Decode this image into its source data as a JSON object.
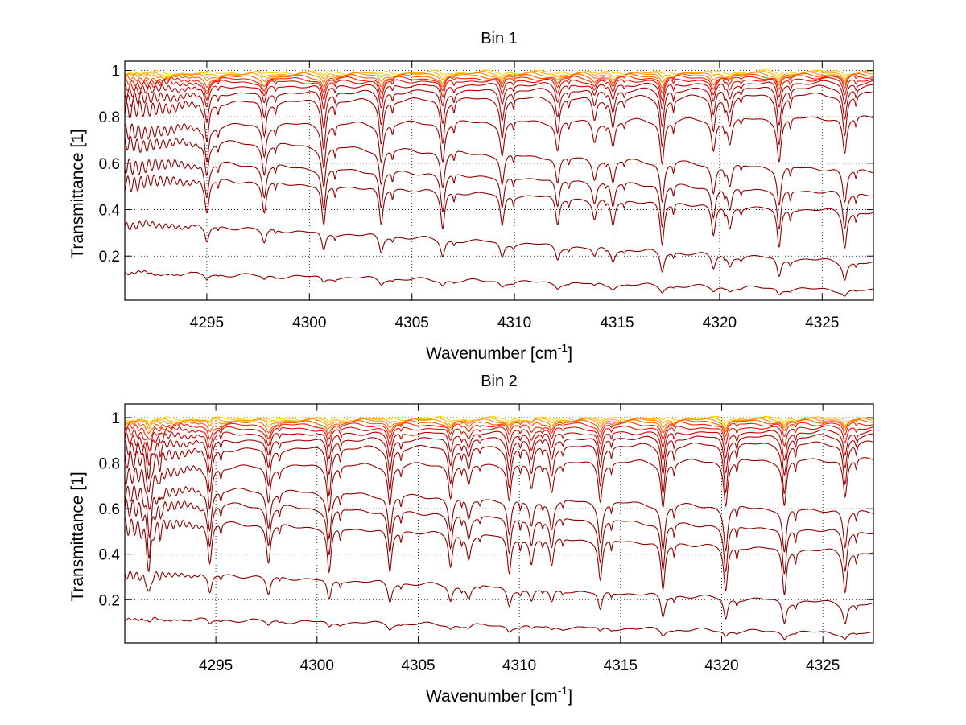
{
  "chart_data": [
    {
      "type": "line",
      "title": "Bin 1",
      "xlabel_main": "Wavenumber [cm",
      "xlabel_sup": "-1",
      "xlabel_end": "]",
      "ylabel": "Transmittance [1]",
      "xlim": [
        4291,
        4327.5
      ],
      "ylim": [
        0.01,
        1.04
      ],
      "xticks": [
        4295,
        4300,
        4305,
        4310,
        4315,
        4320,
        4325
      ],
      "xtick_labels": [
        "4295",
        "4300",
        "4305",
        "4310",
        "4315",
        "4320",
        "4325"
      ],
      "yticks": [
        0.2,
        0.4,
        0.6,
        0.8,
        1
      ],
      "ytick_labels": [
        "0.2",
        "0.4",
        "0.6",
        "0.8",
        "1"
      ],
      "grid": true,
      "line_lines": [
        4295,
        4297.8,
        4300.7,
        4303.5,
        4306.5,
        4309.4,
        4312.1,
        4313.9,
        4314.8,
        4317.2,
        4319.7,
        4320.5,
        4322.9,
        4326.1
      ],
      "line_depth_scale": [
        1.0,
        0.9,
        1.2,
        1.1,
        1.1,
        0.95,
        0.85,
        0.6,
        0.75,
        1.25,
        0.9,
        0.7,
        1.2,
        1.05
      ],
      "curves": [
        {
          "base_start": 0.99,
          "base_end": 0.995,
          "depth": 0.012,
          "color": "#ffd400"
        },
        {
          "base_start": 0.985,
          "base_end": 0.99,
          "depth": 0.018,
          "color": "#ffb000"
        },
        {
          "base_start": 0.98,
          "base_end": 0.985,
          "depth": 0.025,
          "color": "#ff8c00"
        },
        {
          "base_start": 0.97,
          "base_end": 0.98,
          "depth": 0.035,
          "color": "#ff5a00"
        },
        {
          "base_start": 0.96,
          "base_end": 0.975,
          "depth": 0.05,
          "color": "#ff2000"
        },
        {
          "base_start": 0.95,
          "base_end": 0.965,
          "depth": 0.07,
          "color": "#e01000"
        },
        {
          "base_start": 0.93,
          "base_end": 0.95,
          "depth": 0.09,
          "color": "#c40000"
        },
        {
          "base_start": 0.9,
          "base_end": 0.93,
          "depth": 0.13,
          "color": "#a80000"
        },
        {
          "base_start": 0.86,
          "base_end": 0.9,
          "depth": 0.17,
          "color": "#a00000"
        },
        {
          "base_start": 0.76,
          "base_end": 0.8,
          "depth": 0.15,
          "color": "#9a0000"
        },
        {
          "base_start": 0.71,
          "base_end": 0.57,
          "depth": 0.14,
          "color": "#900000"
        },
        {
          "base_start": 0.62,
          "base_end": 0.47,
          "depth": 0.15,
          "color": "#900000"
        },
        {
          "base_start": 0.55,
          "base_end": 0.39,
          "depth": 0.15,
          "color": "#900000"
        },
        {
          "base_start": 0.35,
          "base_end": 0.17,
          "depth": 0.07,
          "color": "#8a0000"
        },
        {
          "base_start": 0.13,
          "base_end": 0.05,
          "depth": 0.02,
          "color": "#8a0000"
        }
      ]
    },
    {
      "type": "line",
      "title": "Bin 2",
      "xlabel_main": "Wavenumber [cm",
      "xlabel_sup": "-1",
      "xlabel_end": "]",
      "ylabel": "Transmittance [1]",
      "xlim": [
        4290.5,
        4327.5
      ],
      "ylim": [
        0.01,
        1.06
      ],
      "xticks": [
        4295,
        4300,
        4305,
        4310,
        4315,
        4320,
        4325
      ],
      "xtick_labels": [
        "4295",
        "4300",
        "4305",
        "4310",
        "4315",
        "4320",
        "4325"
      ],
      "yticks": [
        0.2,
        0.4,
        0.6,
        0.8,
        1
      ],
      "ytick_labels": [
        "0.2",
        "0.4",
        "0.6",
        "0.8",
        "1"
      ],
      "grid": true,
      "line_lines": [
        4291.7,
        4294.7,
        4297.6,
        4300.6,
        4303.6,
        4306.6,
        4307.5,
        4309.5,
        4310.6,
        4311.6,
        4314.0,
        4317.1,
        4320.2,
        4323.1,
        4326.1
      ],
      "line_depth_scale": [
        1.1,
        1.1,
        1.0,
        1.2,
        1.1,
        0.9,
        0.6,
        1.0,
        0.7,
        0.75,
        1.05,
        1.25,
        1.2,
        1.25,
        1.05
      ],
      "curves": [
        {
          "base_start": 0.995,
          "base_end": 0.997,
          "depth": 0.012,
          "color": "#ffd400"
        },
        {
          "base_start": 0.99,
          "base_end": 0.993,
          "depth": 0.018,
          "color": "#ffb000"
        },
        {
          "base_start": 0.985,
          "base_end": 0.99,
          "depth": 0.025,
          "color": "#ff8c00"
        },
        {
          "base_start": 0.975,
          "base_end": 0.985,
          "depth": 0.035,
          "color": "#ff5a00"
        },
        {
          "base_start": 0.965,
          "base_end": 0.975,
          "depth": 0.05,
          "color": "#ff2000"
        },
        {
          "base_start": 0.95,
          "base_end": 0.96,
          "depth": 0.07,
          "color": "#e01000"
        },
        {
          "base_start": 0.93,
          "base_end": 0.94,
          "depth": 0.1,
          "color": "#c40000"
        },
        {
          "base_start": 0.9,
          "base_end": 0.92,
          "depth": 0.13,
          "color": "#a80000"
        },
        {
          "base_start": 0.86,
          "base_end": 0.89,
          "depth": 0.17,
          "color": "#a00000"
        },
        {
          "base_start": 0.78,
          "base_end": 0.82,
          "depth": 0.16,
          "color": "#9a0000"
        },
        {
          "base_start": 0.7,
          "base_end": 0.59,
          "depth": 0.16,
          "color": "#900000"
        },
        {
          "base_start": 0.64,
          "base_end": 0.5,
          "depth": 0.17,
          "color": "#900000"
        },
        {
          "base_start": 0.56,
          "base_end": 0.41,
          "depth": 0.17,
          "color": "#900000"
        },
        {
          "base_start": 0.33,
          "base_end": 0.18,
          "depth": 0.08,
          "color": "#8a0000"
        },
        {
          "base_start": 0.12,
          "base_end": 0.05,
          "depth": 0.02,
          "color": "#8a0000"
        }
      ]
    }
  ]
}
